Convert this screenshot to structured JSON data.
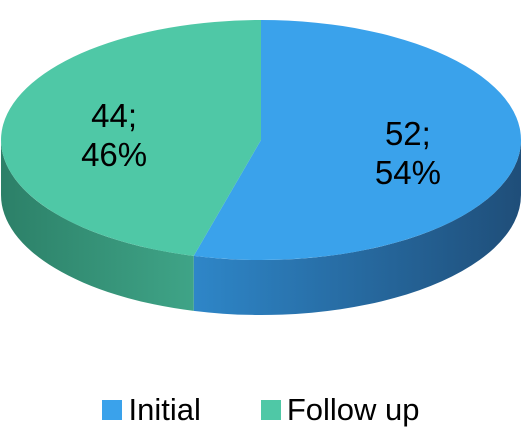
{
  "chart_data": {
    "type": "pie",
    "style": "3d",
    "categories": [
      "Initial",
      "Follow up"
    ],
    "values": [
      52,
      44
    ],
    "percentages": [
      54,
      46
    ],
    "data_labels": [
      {
        "line1": "52;",
        "line2": "54%"
      },
      {
        "line1": "44;",
        "line2": "46%"
      }
    ],
    "legend_position": "bottom",
    "colors": {
      "Initial": {
        "top": "#3AA2EB",
        "side_dark": "#1F4E79",
        "side_light": "#2E86C8"
      },
      "Follow up": {
        "top": "#4FC8A6",
        "side_dark": "#2C8068",
        "side_light": "#3FA487"
      }
    }
  },
  "legend": {
    "items": [
      {
        "label": "Initial",
        "color": "#3AA2EB"
      },
      {
        "label": "Follow up",
        "color": "#4FC8A6"
      }
    ]
  }
}
